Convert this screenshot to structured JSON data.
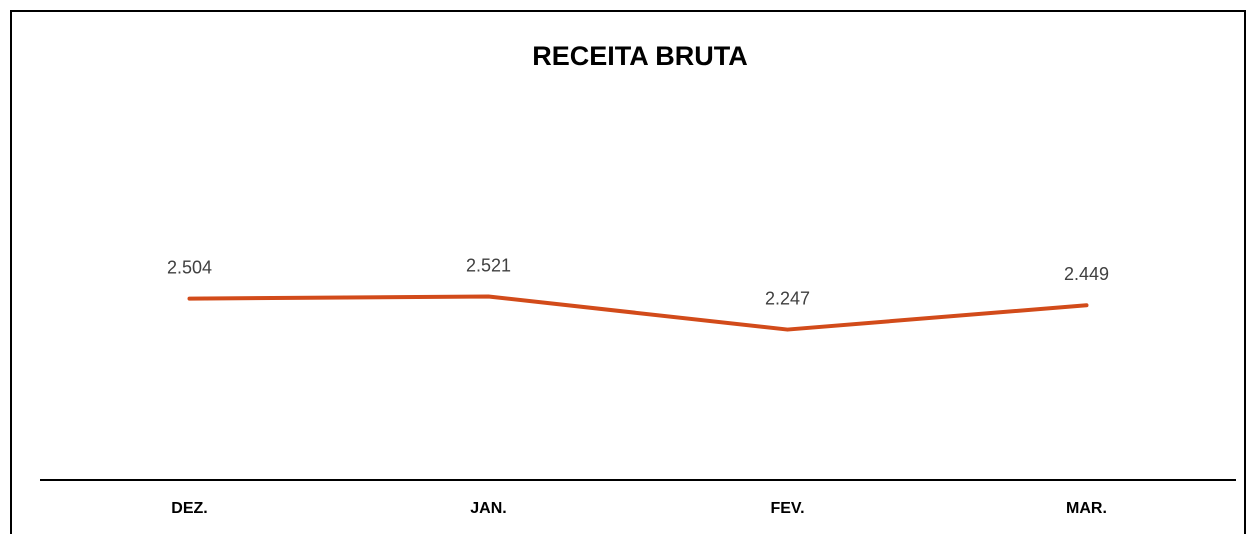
{
  "chart_data": {
    "type": "line",
    "title": "RECEITA BRUTA",
    "categories": [
      "DEZ.",
      "JAN.",
      "FEV.",
      "MAR."
    ],
    "series": [
      {
        "color": "#d24b1a",
        "values": [
          2504,
          2521,
          2247,
          2449
        ],
        "value_labels": [
          "2.504",
          "2.521",
          "2.247",
          "2.449"
        ]
      }
    ],
    "ylim": [
      1000,
      4150
    ]
  }
}
